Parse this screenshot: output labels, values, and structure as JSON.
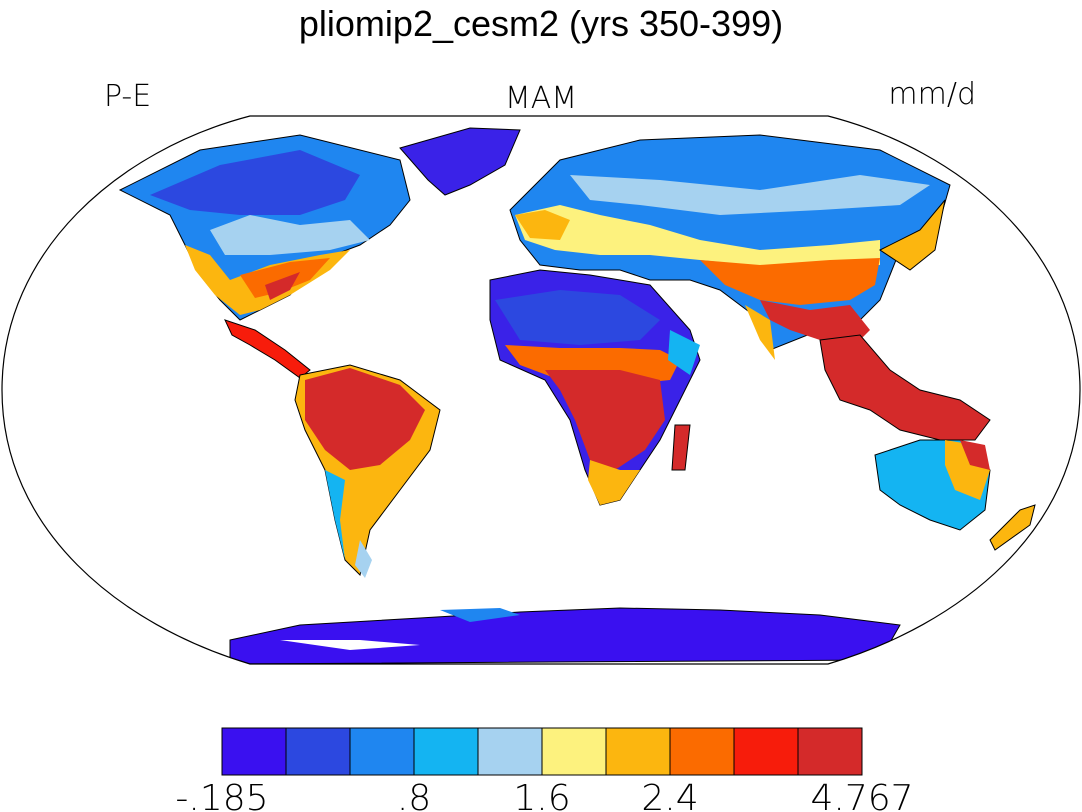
{
  "title": "pliomip2_cesm2 (yrs 350-399)",
  "left_label": "P-E",
  "center_label": "MAM",
  "right_label": "mm/d",
  "colorbar": {
    "colors": [
      "#3a10f0",
      "#2c48e0",
      "#1f86f0",
      "#14b4f2",
      "#a6d2f0",
      "#fdf27e",
      "#fcb60f",
      "#fb6b00",
      "#f71c0b",
      "#d42a2a"
    ],
    "tick_labels": [
      "-.185",
      ".8",
      "1.6",
      "2.4",
      "4.767"
    ]
  },
  "palette": {
    "ocean": "#ffffff",
    "outline": "#000000"
  }
}
